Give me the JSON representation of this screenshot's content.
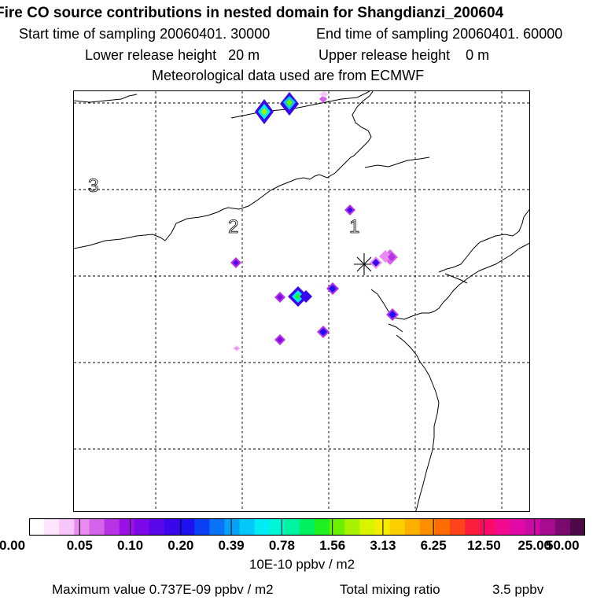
{
  "header": {
    "title": "Fire CO source contributions in nested domain for Shangdianzi_200604",
    "start_time": "Start time of sampling 20060401. 30000",
    "end_time": "End time of sampling 20060401. 60000",
    "lower_release": "Lower release height   20 m",
    "upper_release": "Upper release height    0 m",
    "met_data": "Meteorological data used are from ECMWF"
  },
  "map": {
    "station_marker": "station-star",
    "contour_labels": [
      "3",
      "2",
      "1"
    ]
  },
  "colorbar": {
    "tick_labels": [
      "0.00",
      "0.05",
      "0.10",
      "0.20",
      "0.39",
      "0.78",
      "1.56",
      "3.13",
      "6.25",
      "12.50",
      "25.00",
      "50.00"
    ],
    "colors": [
      "#ffffff",
      "#fde6fd",
      "#f6c6f8",
      "#e98cf0",
      "#d463ea",
      "#b832e6",
      "#9b10e6",
      "#7c08e8",
      "#5a06ea",
      "#3a06ec",
      "#1e10f0",
      "#0a40f4",
      "#0a72f6",
      "#06a2f8",
      "#04c8f8",
      "#00ecf4",
      "#00f6d4",
      "#00f4a0",
      "#00f060",
      "#20f020",
      "#6af000",
      "#a8f200",
      "#d8f400",
      "#f6ec00",
      "#fcd000",
      "#fcb000",
      "#fc8e00",
      "#fc6c00",
      "#fc4418",
      "#fc1c3c",
      "#fc0a6a",
      "#f20a90",
      "#e20aa6",
      "#cc0aa6",
      "#a80a90",
      "#7a0a6e",
      "#4e0a48"
    ],
    "units": "10E-10 ppbv / m2"
  },
  "footer": {
    "max_value": "Maximum value  0.737E-09 ppbv / m2",
    "total_label": "Total mixing ratio",
    "total_value": "3.5 ppbv"
  }
}
